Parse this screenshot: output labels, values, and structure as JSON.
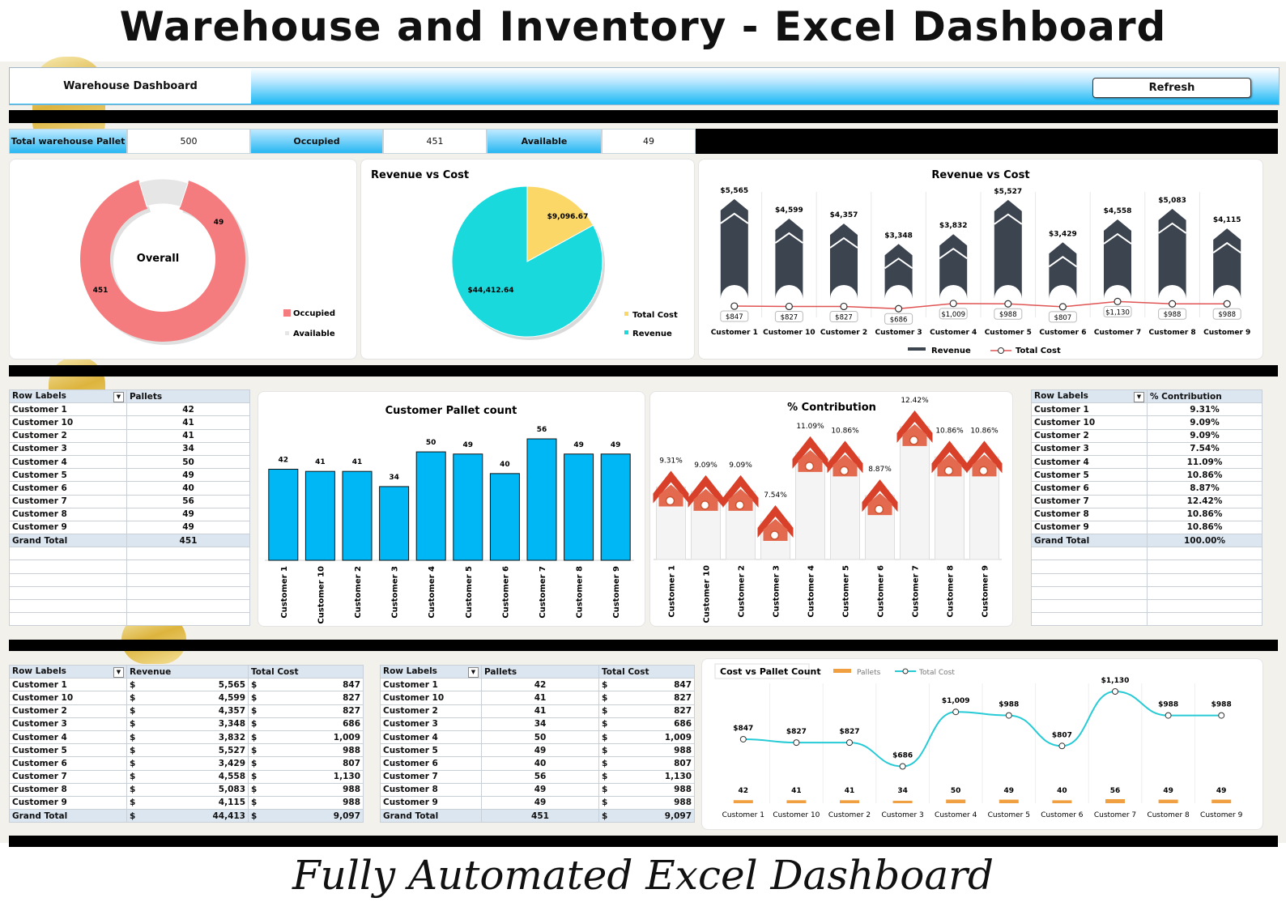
{
  "title": "Warehouse and Inventory - Excel Dashboard",
  "footer": "Fully Automated Excel Dashboard",
  "header": {
    "label": "Warehouse Dashboard",
    "refresh": "Refresh"
  },
  "kpis": {
    "total_label": "Total warehouse Pallet",
    "total_value": "500",
    "occupied_label": "Occupied",
    "occupied_value": "451",
    "available_label": "Available",
    "available_value": "49"
  },
  "colors": {
    "accent": "#00b8f0",
    "occupied": "#f47c7e",
    "available": "#e6e6e6",
    "revenue_pie": "#19d9dc",
    "cost_pie": "#fbd768",
    "column": "#3c4450",
    "line": "#e05454",
    "bar_blue": "#00b7f5",
    "house": "#d9402a",
    "cost_line": "#27cbd6",
    "pallet_bar": "#f0a040"
  },
  "customers": [
    "Customer 1",
    "Customer 10",
    "Customer 2",
    "Customer 3",
    "Customer 4",
    "Customer 5",
    "Customer 6",
    "Customer 7",
    "Customer 8",
    "Customer 9"
  ],
  "pallets": [
    42,
    41,
    41,
    34,
    50,
    49,
    40,
    56,
    49,
    49
  ],
  "pallets_total": "451",
  "revenue_fmt": [
    "5,565",
    "4,599",
    "4,357",
    "3,348",
    "3,832",
    "5,527",
    "3,429",
    "4,558",
    "5,083",
    "4,115"
  ],
  "cost_fmt": [
    "847",
    "827",
    "827",
    "686",
    "1,009",
    "988",
    "807",
    "1,130",
    "988",
    "988"
  ],
  "revenue_total": "44,413",
  "cost_total": "9,097",
  "pct_fmt": [
    "9.31%",
    "9.09%",
    "9.09%",
    "7.54%",
    "11.09%",
    "10.86%",
    "8.87%",
    "12.42%",
    "10.86%",
    "10.86%"
  ],
  "pct_total": "100.00%",
  "currency": "$",
  "tables": {
    "row_labels": "Row Labels",
    "pallets": "Pallets",
    "contribution": "% Contribution",
    "revenue": "Revenue",
    "total_cost": "Total Cost",
    "grand_total": "Grand Total"
  },
  "chart_data": [
    {
      "type": "pie",
      "subtype": "donut",
      "title": "",
      "center_label": "Overall",
      "categories": [
        "Occupied",
        "Available"
      ],
      "values": [
        451,
        49
      ],
      "legend": [
        "Occupied",
        "Available"
      ],
      "legend_position": "bottom-right"
    },
    {
      "type": "pie",
      "title": "Revenue vs Cost",
      "categories": [
        "Total Cost",
        "Revenue"
      ],
      "values": [
        9096.67,
        44412.64
      ],
      "labels": [
        "$9,096.67",
        "$44,412.64"
      ],
      "legend": [
        "Total Cost",
        "Revenue"
      ],
      "legend_position": "right"
    },
    {
      "type": "bar",
      "title": "Revenue vs Cost",
      "categories": [
        "Customer 1",
        "Customer 10",
        "Customer 2",
        "Customer 3",
        "Customer 4",
        "Customer 5",
        "Customer 6",
        "Customer 7",
        "Customer 8",
        "Customer 9"
      ],
      "series": [
        {
          "name": "Revenue",
          "type": "bar",
          "values": [
            5565,
            4599,
            4357,
            3348,
            3832,
            5527,
            3429,
            4558,
            5083,
            4115
          ],
          "labels": [
            "$5,565",
            "$4,599",
            "$4,357",
            "$3,348",
            "$3,832",
            "$5,527",
            "$3,429",
            "$4,558",
            "$5,083",
            "$4,115"
          ]
        },
        {
          "name": "Total Cost",
          "type": "line",
          "values": [
            847,
            827,
            827,
            686,
            1009,
            988,
            807,
            1130,
            988,
            988
          ],
          "labels": [
            "$847",
            "$827",
            "$827",
            "$686",
            "$1,009",
            "$988",
            "$807",
            "$1,130",
            "$988",
            "$988"
          ]
        }
      ],
      "legend_position": "bottom"
    },
    {
      "type": "bar",
      "title": "Customer Pallet count",
      "categories": [
        "Customer 1",
        "Customer 10",
        "Customer 2",
        "Customer 3",
        "Customer 4",
        "Customer 5",
        "Customer 6",
        "Customer 7",
        "Customer 8",
        "Customer 9"
      ],
      "values": [
        42,
        41,
        41,
        34,
        50,
        49,
        40,
        56,
        49,
        49
      ]
    },
    {
      "type": "bar",
      "title": "% Contribution",
      "categories": [
        "Customer 1",
        "Customer 10",
        "Customer 2",
        "Customer 3",
        "Customer 4",
        "Customer 5",
        "Customer 6",
        "Customer 7",
        "Customer 8",
        "Customer 9"
      ],
      "values": [
        9.31,
        9.09,
        9.09,
        7.54,
        11.09,
        10.86,
        8.87,
        12.42,
        10.86,
        10.86
      ],
      "labels": [
        "9.31%",
        "9.09%",
        "9.09%",
        "7.54%",
        "11.09%",
        "10.86%",
        "8.87%",
        "12.42%",
        "10.86%",
        "10.86%"
      ]
    },
    {
      "type": "line",
      "title": "Cost vs Pallet Count",
      "categories": [
        "Customer 1",
        "Customer 10",
        "Customer 2",
        "Customer 3",
        "Customer 4",
        "Customer 5",
        "Customer 6",
        "Customer 7",
        "Customer 8",
        "Customer 9"
      ],
      "series": [
        {
          "name": "Pallets",
          "type": "bar",
          "values": [
            42,
            41,
            41,
            34,
            50,
            49,
            40,
            56,
            49,
            49
          ]
        },
        {
          "name": "Total Cost",
          "type": "line",
          "values": [
            847,
            827,
            827,
            686,
            1009,
            988,
            807,
            1130,
            988,
            988
          ],
          "labels": [
            "$847",
            "$827",
            "$827",
            "$686",
            "$1,009",
            "$988",
            "$807",
            "$1,130",
            "$988",
            "$988"
          ]
        }
      ],
      "legend_position": "top"
    }
  ]
}
